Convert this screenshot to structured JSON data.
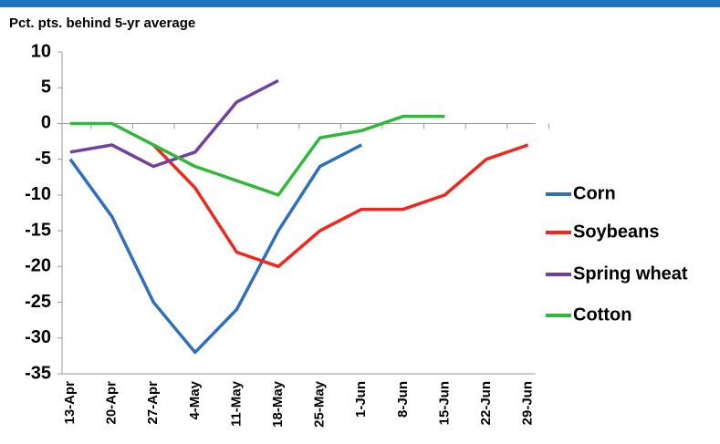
{
  "chart_data": {
    "type": "line",
    "title": "Pct. pts. behind 5-yr average",
    "categories": [
      "13-Apr",
      "20-Apr",
      "27-Apr",
      "4-May",
      "11-May",
      "18-May",
      "25-May",
      "1-Jun",
      "8-Jun",
      "15-Jun",
      "22-Jun",
      "29-Jun"
    ],
    "series": [
      {
        "name": "Corn",
        "color": "#2e6fc0",
        "values": [
          -5,
          -13,
          -25,
          -32,
          -26,
          -15,
          -6,
          -3,
          null,
          null,
          null,
          null
        ]
      },
      {
        "name": "Soybeans",
        "color": "#f3261c",
        "values": [
          null,
          null,
          -3,
          -9,
          -18,
          -20,
          -15,
          -12,
          -12,
          -10,
          -5,
          -3
        ]
      },
      {
        "name": "Spring wheat",
        "color": "#7340a0",
        "values": [
          -4,
          -3,
          -6,
          -4,
          3,
          6,
          null,
          null,
          null,
          null,
          null,
          null
        ]
      },
      {
        "name": "Cotton",
        "color": "#2fb83a",
        "values": [
          0,
          0,
          -3,
          -6,
          -8,
          -10,
          -2,
          -1,
          1,
          1,
          null,
          null
        ]
      }
    ],
    "ylim": [
      -35,
      10
    ],
    "yticks": [
      -35,
      -30,
      -25,
      -20,
      -15,
      -10,
      -5,
      0,
      5,
      10
    ],
    "grid": false,
    "legend": "right"
  }
}
